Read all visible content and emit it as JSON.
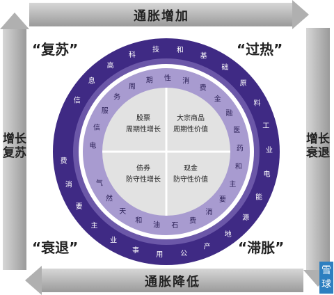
{
  "arrows": {
    "top": "通胀增加",
    "bottom": "通胀降低",
    "left": "增长复苏",
    "right": "增长衰退"
  },
  "phases": {
    "recovery": "“复苏”",
    "overheat": "“过热”",
    "recession": "“衰退”",
    "stagflation": "“滞胀”"
  },
  "quadrants": {
    "top_left": [
      "股票",
      "周期性增长"
    ],
    "top_right": [
      "大宗商品",
      "周期性价值"
    ],
    "bottom_left": [
      "债券",
      "防守性增长"
    ],
    "bottom_right": [
      "现金",
      "防守性价值"
    ]
  },
  "ring_outer_words": [
    "信",
    "息",
    "高",
    "科",
    "技",
    "和",
    "基",
    "础",
    "原",
    "料",
    "工",
    "业",
    "电",
    "能",
    "源",
    "地",
    "产",
    "公",
    "用",
    "事",
    "业",
    "主",
    "要",
    "消",
    "费"
  ],
  "ring_inner_words": [
    "电",
    "信",
    "服",
    "务",
    "周",
    "期",
    "性",
    "消",
    "费",
    "金",
    "融",
    "医",
    "药",
    "和",
    "主",
    "要",
    "消",
    "费",
    "石",
    "油",
    "和",
    "天",
    "然",
    "气"
  ],
  "logo": "雪球",
  "colors": {
    "ring_dark": "#3f2a84",
    "ring_mid": "#6b57a8",
    "ring_light": "#a89bd0",
    "quadrant_fill": "#e2e2e2"
  }
}
